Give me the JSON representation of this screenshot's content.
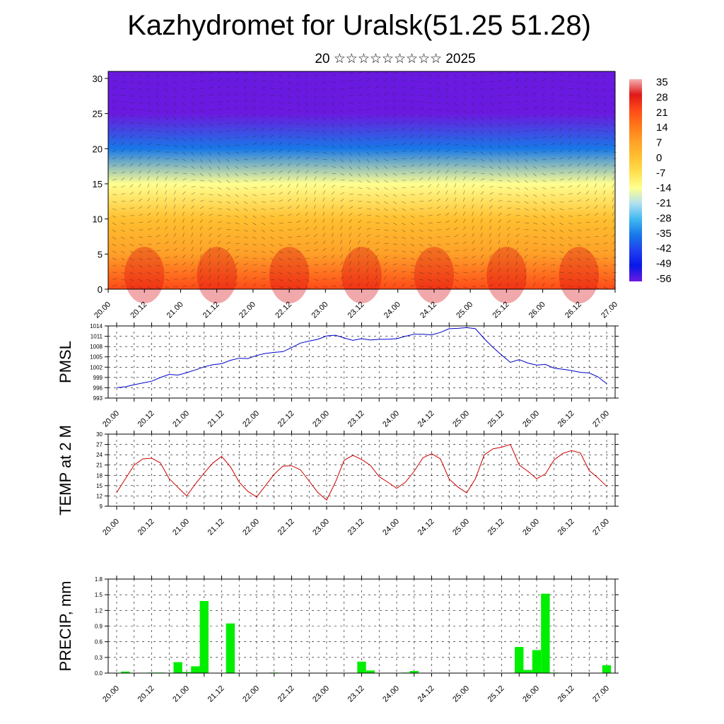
{
  "title": "Kazhydromet for Uralsk(51.25 51.28)",
  "subtitle": "20 ☆☆☆☆☆☆☆☆☆ 2025",
  "time_ticks": [
    "20.00",
    "20.12",
    "21.00",
    "21.12",
    "22.00",
    "22.12",
    "23.00",
    "23.12",
    "24.00",
    "24.12",
    "25.00",
    "25.12",
    "26.00",
    "26.12",
    "27.00"
  ],
  "colors": {
    "pmsl": "#0000cc",
    "temp": "#cc0000",
    "precip": "#00ee00"
  },
  "chart_data": [
    {
      "type": "heatmap",
      "title": "Kazhydromet for Uralsk(51.25 51.28)",
      "subtitle": "20 ☆☆☆☆☆☆☆☆☆ 2025",
      "xlabel": "",
      "ylabel": "",
      "ylim": [
        0,
        31
      ],
      "y_ticks": [
        0,
        5,
        10,
        15,
        20,
        25,
        30
      ],
      "colorbar": {
        "labels": [
          "35",
          "28",
          "21",
          "14",
          "7",
          "0",
          "-7",
          "-14",
          "-21",
          "-28",
          "-35",
          "-42",
          "-49",
          "-56"
        ],
        "colors": [
          "#f4b0b0",
          "#e01818",
          "#ff4a18",
          "#ff7818",
          "#ffa028",
          "#ffc030",
          "#ffe050",
          "#ffff90",
          "#b0e0f0",
          "#40b8f0",
          "#1878e8",
          "#2040f0",
          "#0818e8",
          "#6a1ae0"
        ]
      },
      "levels": [
        0,
        5,
        10,
        15,
        20,
        25,
        30
      ],
      "level_values": [
        22,
        12,
        5,
        -10,
        -35,
        -52,
        -60
      ]
    },
    {
      "type": "line",
      "ylabel": "PMSL",
      "ylim": [
        993,
        1014
      ],
      "y_ticks": [
        993,
        996,
        999,
        1002,
        1005,
        1008,
        1011,
        1014
      ],
      "x": [
        0,
        3,
        6,
        9,
        12,
        15,
        18,
        21,
        24,
        27,
        30,
        33,
        36,
        39,
        42,
        45,
        48,
        51,
        54,
        57,
        60,
        63,
        66,
        69,
        72,
        75,
        78,
        81,
        84,
        87,
        90,
        93,
        96,
        99,
        102,
        105,
        108,
        111,
        114,
        117,
        120,
        123,
        126,
        129,
        132,
        135,
        138,
        141,
        144,
        147,
        150,
        153,
        156,
        159,
        162,
        165,
        168
      ],
      "series": [
        {
          "values": [
            996,
            996.3,
            996.9,
            997.4,
            997.9,
            999,
            999.9,
            999.7,
            1000.4,
            1001.2,
            1002.1,
            1002.7,
            1003,
            1004,
            1004.6,
            1004.5,
            1005.4,
            1006,
            1006.3,
            1006.5,
            1007.7,
            1009,
            1009.6,
            1010.1,
            1011.1,
            1011.3,
            1010.5,
            1009.8,
            1010.3,
            1009.9,
            1010.1,
            1010.1,
            1010.3,
            1011,
            1011.6,
            1011.6,
            1011.4,
            1012.1,
            1013.2,
            1013.3,
            1013.5,
            1013.2,
            1010.3,
            1007.8,
            1005.5,
            1003.4,
            1004.2,
            1003.2,
            1002.6,
            1002.8,
            1001.7,
            1001.4,
            1001,
            1000.5,
            1000.3,
            999.2,
            997.2
          ]
        }
      ]
    },
    {
      "type": "line",
      "ylabel": "TEMP at 2 M",
      "ylim": [
        9,
        30
      ],
      "y_ticks": [
        9,
        12,
        15,
        18,
        21,
        24,
        27,
        30
      ],
      "x": [
        0,
        3,
        6,
        9,
        12,
        15,
        18,
        21,
        24,
        27,
        30,
        33,
        36,
        39,
        42,
        45,
        48,
        51,
        54,
        57,
        60,
        63,
        66,
        69,
        72,
        75,
        78,
        81,
        84,
        87,
        90,
        93,
        96,
        99,
        102,
        105,
        108,
        111,
        114,
        117,
        120,
        123,
        126,
        129,
        132,
        135,
        138,
        141,
        144,
        147,
        150,
        153,
        156,
        159,
        162,
        165,
        168
      ],
      "series": [
        {
          "values": [
            13,
            17,
            21,
            22.8,
            23,
            21.6,
            17,
            14.5,
            12,
            15.5,
            18.7,
            21.6,
            23.5,
            20.5,
            16,
            13.3,
            11.7,
            15,
            18.3,
            20.7,
            20.8,
            19.6,
            16.3,
            13,
            10.8,
            16,
            22.4,
            23.8,
            22.6,
            20.9,
            17.6,
            16,
            14.2,
            16,
            19.2,
            23.1,
            24.3,
            22.8,
            16.9,
            14.6,
            12.9,
            17,
            23.9,
            25.7,
            26.2,
            27,
            21,
            19.2,
            17,
            18.4,
            22.5,
            24.4,
            25.2,
            24.5,
            19.4,
            17.3,
            14.8
          ]
        }
      ]
    },
    {
      "type": "bar",
      "ylabel": "PRECIP, mm",
      "ylim": [
        0,
        1.8
      ],
      "y_ticks": [
        0.0,
        0.3,
        0.6,
        0.9,
        1.2,
        1.5,
        1.8
      ],
      "y_tick_labels": [
        "0.0",
        "0.3",
        "0.6",
        "0.9",
        "1.2",
        "1.5",
        "1.8"
      ],
      "x": [
        3,
        12,
        15,
        21,
        24,
        27,
        30,
        39,
        54,
        84,
        87,
        99,
        102,
        138,
        141,
        144,
        147,
        150,
        168
      ],
      "values": [
        0.03,
        0.01,
        0.01,
        0.21,
        0.02,
        0.13,
        1.38,
        0.95,
        0.01,
        0.22,
        0.05,
        0.01,
        0.04,
        0.5,
        0.06,
        0.44,
        1.52,
        0.01,
        0.15
      ]
    }
  ]
}
